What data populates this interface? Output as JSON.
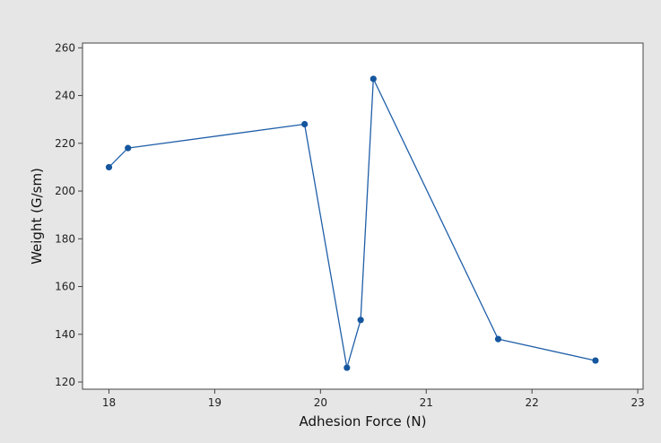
{
  "colors": {
    "background": "#e6e6e6",
    "plot_area": "#ffffff",
    "axis": "#444444",
    "series": "#1f5fa8",
    "marker": "#15569e"
  },
  "chart_data": {
    "type": "line",
    "xlabel": "Adhesion Force (N)",
    "ylabel": "Weight (G/sm)",
    "xlim": [
      17.75,
      23.05
    ],
    "ylim": [
      117,
      262
    ],
    "xticks": [
      18,
      19,
      20,
      21,
      22,
      23
    ],
    "yticks": [
      120,
      140,
      160,
      180,
      200,
      220,
      240,
      260
    ],
    "grid": false,
    "markers": true,
    "series": [
      {
        "x": [
          18.0,
          18.18,
          19.85,
          20.25,
          20.38,
          20.5,
          21.68,
          22.6
        ],
        "y": [
          210,
          218,
          228,
          126,
          146,
          247,
          138,
          129
        ]
      }
    ]
  }
}
